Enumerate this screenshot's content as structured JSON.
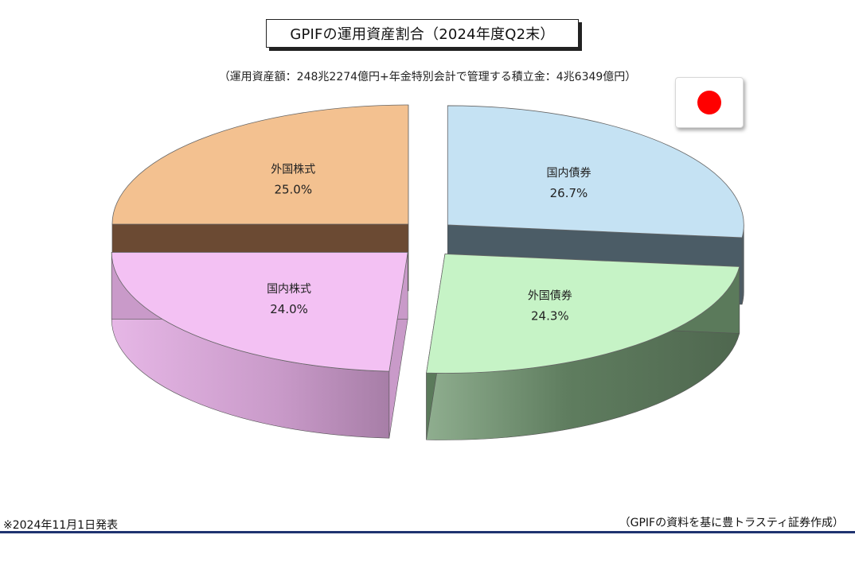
{
  "title": "GPIFの運用資産割合（2024年度Q2末）",
  "subtitle": "（運用資産額：248兆2274億円+年金特別会計で管理する積立金：4兆6349億円）",
  "flag_icon": "japan-flag-icon",
  "chart_data": {
    "type": "pie",
    "title": "GPIFの運用資産割合（2024年度Q2末）",
    "slices": [
      {
        "label": "国内債券",
        "value": 26.7,
        "display": "26.7%",
        "color": "#c5e2f3",
        "side_color": "#4b5c66"
      },
      {
        "label": "外国債券",
        "value": 24.3,
        "display": "24.3%",
        "color": "#c6f3c6",
        "side_color": "#5b7a5b"
      },
      {
        "label": "国内株式",
        "value": 24.0,
        "display": "24.0%",
        "color": "#f3c1f3",
        "side_color": "#c99ac9"
      },
      {
        "label": "外国株式",
        "value": 25.0,
        "display": "25.0%",
        "color": "#f3c190",
        "side_color": "#6b4a33"
      }
    ],
    "style": "3d-exploded",
    "unit": "%"
  },
  "footnote": "※2024年11月1日発表",
  "source": "（GPIFの資料を基に豊トラスティ証券作成）"
}
